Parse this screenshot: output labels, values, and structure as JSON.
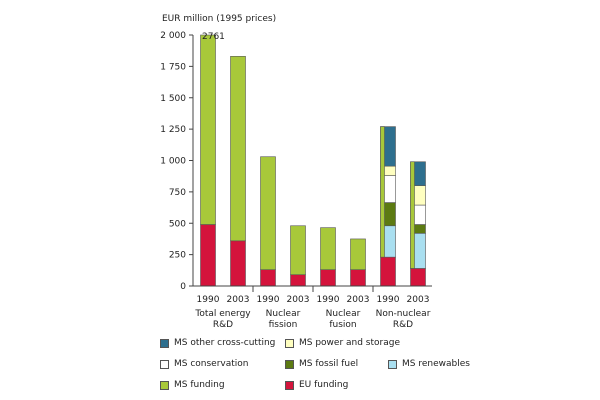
{
  "chart_data": {
    "type": "bar",
    "stacked": true,
    "ylabel": "EUR million (1995 prices)",
    "ylim": [
      0,
      2000
    ],
    "yticks": [
      "0",
      "250",
      "500",
      "750",
      "1 000",
      "1 250",
      "1 500",
      "1 750",
      "2 000"
    ],
    "ytick_values": [
      0,
      250,
      500,
      750,
      1000,
      1250,
      1500,
      1750,
      2000
    ],
    "grid": false,
    "legend_position": "bottom",
    "groups": [
      {
        "label": "Total energy\nR&D",
        "bars": [
          0,
          1
        ]
      },
      {
        "label": "Nuclear\nfission",
        "bars": [
          2,
          3
        ]
      },
      {
        "label": "Nuclear\nfusion",
        "bars": [
          4,
          5
        ]
      },
      {
        "label": "Non-nuclear\nR&D",
        "bars": [
          6,
          7
        ]
      }
    ],
    "bars": [
      {
        "x": "1990",
        "group": 0,
        "segments": {
          "EU funding": 490,
          "MS funding": 2271
        },
        "truncated_label": "2761"
      },
      {
        "x": "2003",
        "group": 0,
        "segments": {
          "EU funding": 360,
          "MS funding": 1470
        }
      },
      {
        "x": "1990",
        "group": 1,
        "segments": {
          "EU funding": 130,
          "MS funding": 900
        }
      },
      {
        "x": "2003",
        "group": 1,
        "segments": {
          "EU funding": 90,
          "MS funding": 390
        }
      },
      {
        "x": "1990",
        "group": 2,
        "segments": {
          "EU funding": 130,
          "MS funding": 335
        }
      },
      {
        "x": "2003",
        "group": 2,
        "segments": {
          "EU funding": 130,
          "MS funding": 245
        }
      },
      {
        "x": "1990",
        "group": 3,
        "segments": {
          "EU funding": 230,
          "MS renewables": 250,
          "MS fossil fuel": 185,
          "MS conservation": 215,
          "MS power and storage": 75,
          "MS other cross-cutting": 315
        },
        "ms_funding_total": 1040
      },
      {
        "x": "2003",
        "group": 3,
        "segments": {
          "EU funding": 140,
          "MS renewables": 280,
          "MS fossil fuel": 70,
          "MS conservation": 155,
          "MS power and storage": 155,
          "MS other cross-cutting": 190
        },
        "ms_funding_total": 850
      }
    ],
    "legend": [
      {
        "name": "MS other cross-cutting",
        "color": "#2e6f8e"
      },
      {
        "name": "MS power and storage",
        "color": "#ffffc0"
      },
      {
        "name": "MS conservation",
        "color": "#ffffff"
      },
      {
        "name": "MS fossil fuel",
        "color": "#5c7a12"
      },
      {
        "name": "MS renewables",
        "color": "#a9dff0"
      },
      {
        "name": "MS funding",
        "color": "#a8c83a"
      },
      {
        "name": "EU funding",
        "color": "#d4143c"
      }
    ]
  }
}
